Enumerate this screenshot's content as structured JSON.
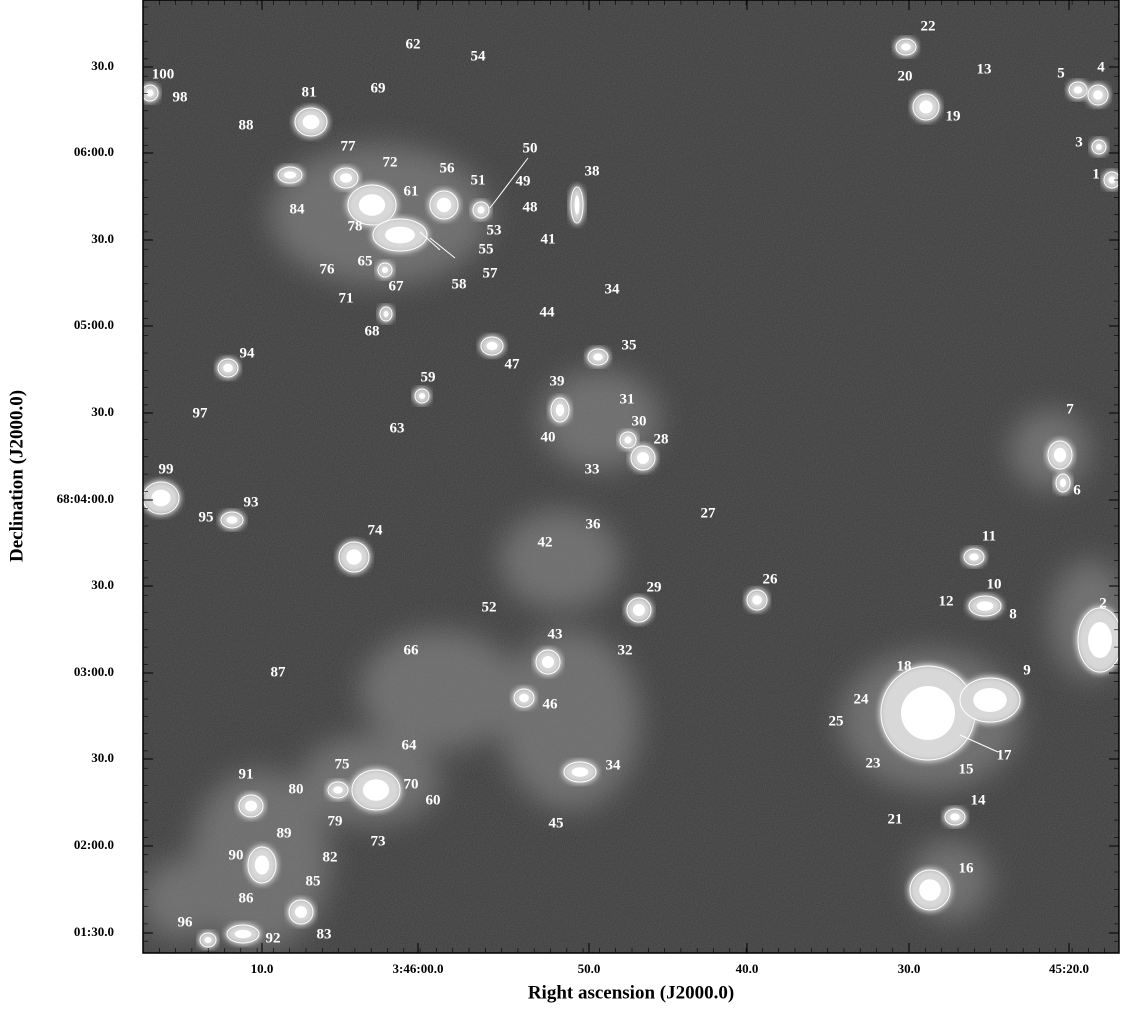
{
  "axes": {
    "x_label": "Right ascension (J2000.0)",
    "y_label": "Declination (J2000.0)",
    "x_ticks": [
      "10.0",
      "3:46:00.0",
      "50.0",
      "40.0",
      "30.0",
      "45:20.0"
    ],
    "y_ticks": [
      "30.0",
      "06:00.0",
      "30.0",
      "05:00.0",
      "30.0",
      "68:04:00.0",
      "30.0",
      "03:00.0",
      "30.0",
      "02:00.0",
      "01:30.0"
    ]
  },
  "sources": [
    "100",
    "98",
    "81",
    "69",
    "62",
    "54",
    "88",
    "77",
    "72",
    "56",
    "51",
    "50",
    "49",
    "48",
    "38",
    "61",
    "84",
    "78",
    "53",
    "55",
    "57",
    "41",
    "76",
    "65",
    "67",
    "58",
    "71",
    "68",
    "34",
    "44",
    "35",
    "47",
    "94",
    "59",
    "39",
    "63",
    "31",
    "30",
    "28",
    "40",
    "97",
    "7",
    "33",
    "99",
    "6",
    "93",
    "95",
    "27",
    "36",
    "42",
    "74",
    "11",
    "26",
    "29",
    "10",
    "12",
    "8",
    "2",
    "52",
    "43",
    "32",
    "66",
    "18",
    "9",
    "87",
    "24",
    "46",
    "25",
    "64",
    "17",
    "75",
    "23",
    "15",
    "34",
    "70",
    "91",
    "80",
    "60",
    "14",
    "79",
    "45",
    "21",
    "89",
    "73",
    "82",
    "90",
    "16",
    "85",
    "86",
    "83",
    "96",
    "92",
    "22",
    "20",
    "13",
    "19",
    "5",
    "4",
    "3",
    "1"
  ]
}
